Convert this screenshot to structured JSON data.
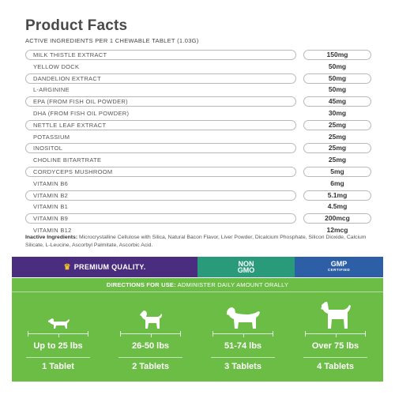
{
  "facts": {
    "title": "Product Facts",
    "subtitle": "ACTIVE INGREDIENTS PER 1 CHEWABLE TABLET (1.03G)",
    "ingredients": [
      {
        "name": "MILK THISTLE EXTRACT",
        "amount": "150mg"
      },
      {
        "name": "YELLOW DOCK",
        "amount": "50mg"
      },
      {
        "name": "DANDELION EXTRACT",
        "amount": "50mg"
      },
      {
        "name": "L-ARGININE",
        "amount": "50mg"
      },
      {
        "name": "EPA (FROM FISH OIL POWDER)",
        "amount": "45mg"
      },
      {
        "name": "DHA (FROM FISH OIL POWDER)",
        "amount": "30mg"
      },
      {
        "name": "NETTLE LEAF EXTRACT",
        "amount": "25mg"
      },
      {
        "name": "POTASSIUM",
        "amount": "25mg"
      },
      {
        "name": "INOSITOL",
        "amount": "25mg"
      },
      {
        "name": "CHOLINE BITARTRATE",
        "amount": "25mg"
      },
      {
        "name": "CORDYCEPS MUSHROOM",
        "amount": "5mg"
      },
      {
        "name": "VITAMIN B6",
        "amount": "6mg"
      },
      {
        "name": "VITAMIN B2",
        "amount": "5.1mg"
      },
      {
        "name": "VITAMIN B1",
        "amount": "4.5mg"
      },
      {
        "name": "VITAMIN B9",
        "amount": "200mcg"
      },
      {
        "name": "VITAMIN B12",
        "amount": "12mcg"
      }
    ],
    "inactive_label": "Inactive Ingredients:",
    "inactive_text": "Microcrystalline Cellulose with Silica, Natural Bacon Flavor, Liver Powder, Dicalcium Phosphate, Silicon Dioxide, Calcium Silicate, L-Leucine, Ascorbyl Palmitate, Ascorbic Acid."
  },
  "banner": {
    "premium": "PREMIUM QUALITY.",
    "non_gmo_top": "NON",
    "non_gmo_bottom": "GMO",
    "gmp": "GMP",
    "gmp_sub": "CERTIFIED",
    "colors": {
      "premium": "#4a2d7e",
      "non_gmo": "#2a9b7a",
      "gmp": "#2d5fa6"
    }
  },
  "directions": {
    "label": "DIRECTIONS FOR USE:",
    "text": " ADMINISTER DAILY AMOUNT ORALLY",
    "color": "#6cbd45",
    "columns": [
      {
        "weight": "Up to 25 lbs",
        "dose": "1 Tablet",
        "icon": "small-dog-icon"
      },
      {
        "weight": "26-50 lbs",
        "dose": "2 Tablets",
        "icon": "medium-dog-icon"
      },
      {
        "weight": "51-74 lbs",
        "dose": "3 Tablets",
        "icon": "large-dog-icon"
      },
      {
        "weight": "Over 75 lbs",
        "dose": "4 Tablets",
        "icon": "extra-large-dog-icon"
      }
    ]
  }
}
